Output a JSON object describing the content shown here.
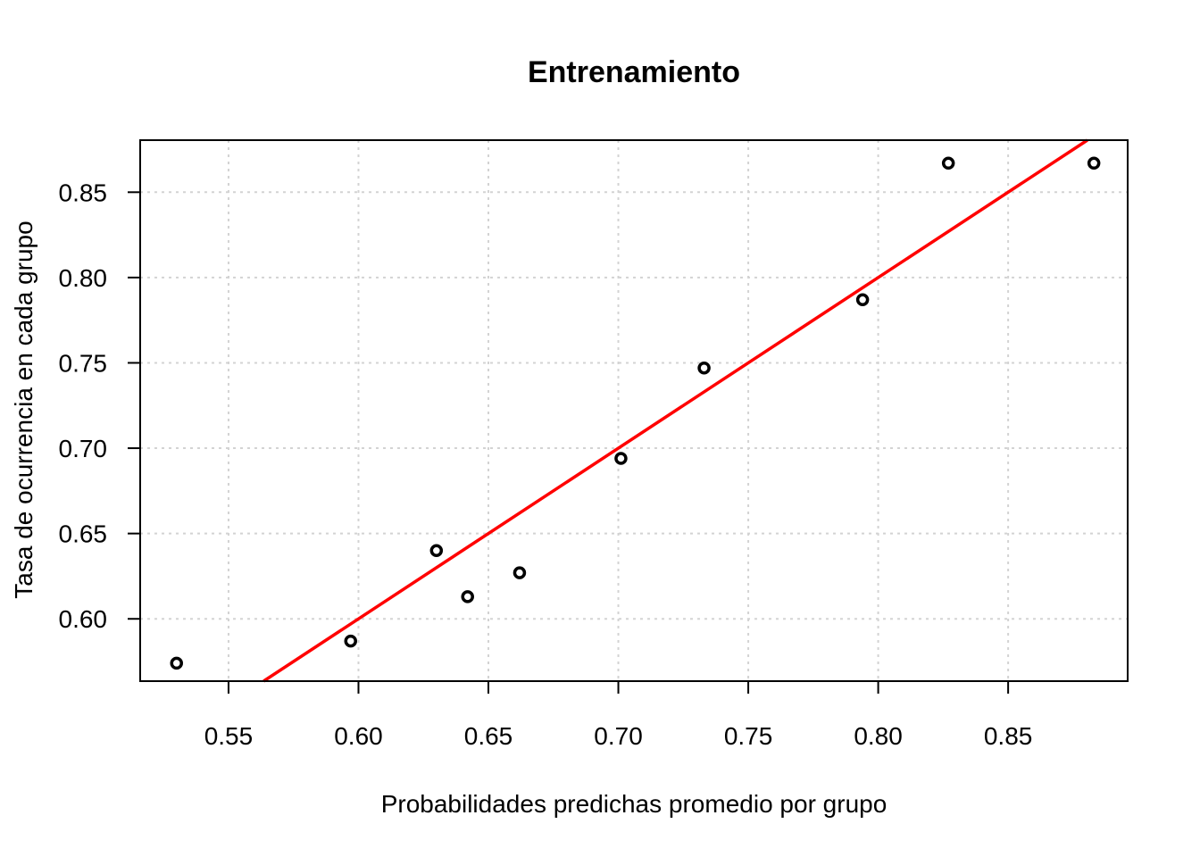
{
  "chart_data": {
    "type": "scatter",
    "title": "Entrenamiento",
    "xlabel": "Probabilidades predichas promedio por grupo",
    "ylabel": "Tasa de ocurrencia en cada grupo",
    "xlim": [
      0.516,
      0.896
    ],
    "ylim": [
      0.5635,
      0.8805
    ],
    "x_ticks": [
      0.55,
      0.6,
      0.65,
      0.7,
      0.75,
      0.8,
      0.85
    ],
    "x_tick_labels": [
      "0.55",
      "0.60",
      "0.65",
      "0.70",
      "0.75",
      "0.80",
      "0.85"
    ],
    "y_ticks": [
      0.6,
      0.65,
      0.7,
      0.75,
      0.8,
      0.85
    ],
    "y_tick_labels": [
      "0.60",
      "0.65",
      "0.70",
      "0.75",
      "0.80",
      "0.85"
    ],
    "grid": true,
    "points": [
      {
        "x": 0.53,
        "y": 0.574
      },
      {
        "x": 0.597,
        "y": 0.587
      },
      {
        "x": 0.63,
        "y": 0.64
      },
      {
        "x": 0.642,
        "y": 0.613
      },
      {
        "x": 0.662,
        "y": 0.627
      },
      {
        "x": 0.701,
        "y": 0.694
      },
      {
        "x": 0.733,
        "y": 0.747
      },
      {
        "x": 0.794,
        "y": 0.787
      },
      {
        "x": 0.827,
        "y": 0.867
      },
      {
        "x": 0.883,
        "y": 0.867
      }
    ],
    "reference_line": {
      "slope": 1,
      "intercept": 0,
      "color": "#ff0000"
    },
    "colors": {
      "points": "#000000",
      "line": "#ff0000",
      "grid": "#d3d3d3"
    }
  }
}
